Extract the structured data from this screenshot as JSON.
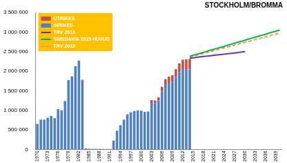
{
  "chart_data": {
    "type": "bar",
    "title": "STOCKHOLM/BROMMA",
    "categories": [
      1970,
      null,
      null,
      1973,
      null,
      null,
      1976,
      null,
      null,
      1979,
      null,
      null,
      1982,
      null,
      null,
      1985,
      null,
      null,
      1988,
      null,
      null,
      1991,
      null,
      null,
      1994,
      null,
      null,
      1997,
      null,
      null,
      2000,
      null,
      null,
      2003,
      null,
      null,
      2006,
      null,
      null,
      2009,
      null,
      null,
      2012,
      null,
      null,
      2015,
      null,
      null,
      2018,
      null,
      null,
      2021,
      null,
      null,
      2024,
      null,
      null,
      2027,
      null,
      null,
      2030,
      null,
      null,
      2033,
      null,
      null,
      2036,
      null,
      null,
      2039,
      null
    ],
    "series": [
      {
        "name": "UTRIKES",
        "type": "bar",
        "color": "#c0504d",
        "values": [
          0,
          0,
          0,
          0,
          0,
          0,
          0,
          0,
          0,
          0,
          0,
          0,
          0,
          0,
          0,
          0,
          0,
          0,
          0,
          0,
          0,
          0,
          0,
          0,
          0,
          0,
          0,
          0,
          0,
          0,
          0,
          0,
          0,
          70000,
          70000,
          80000,
          120000,
          150000,
          160000,
          170000,
          200000,
          220000,
          240000,
          250000,
          260000,
          null,
          null,
          null,
          null,
          null,
          null,
          null,
          null,
          null,
          null,
          null,
          null,
          null,
          null,
          null,
          null,
          null,
          null,
          null,
          null,
          null,
          null,
          null,
          null,
          null,
          null
        ]
      },
      {
        "name": "INRIKES",
        "type": "bar",
        "color": "#4f81bd",
        "values": [
          650000,
          760000,
          760000,
          810000,
          860000,
          800000,
          1030000,
          1000000,
          1240000,
          1770000,
          1870000,
          2130000,
          2270000,
          1780000,
          30000,
          20000,
          15000,
          15000,
          15000,
          10000,
          10000,
          10000,
          230000,
          480000,
          620000,
          760000,
          900000,
          950000,
          980000,
          1000000,
          990000,
          960000,
          970000,
          1190000,
          1180000,
          1250000,
          1480000,
          1650000,
          1700000,
          1730000,
          1850000,
          1980000,
          2050000,
          2050000,
          2050000,
          null,
          null,
          null,
          null,
          null,
          null,
          null,
          null,
          null,
          null,
          null,
          null,
          null,
          null,
          null,
          null,
          null,
          null,
          null,
          null,
          null,
          null,
          null,
          null,
          null,
          null
        ]
      },
      {
        "name": "TRV 2013",
        "type": "line",
        "color": "#7030a0",
        "line_style": "solid",
        "values": [
          null,
          null,
          null,
          null,
          null,
          null,
          null,
          null,
          null,
          null,
          null,
          null,
          null,
          null,
          null,
          null,
          null,
          null,
          null,
          null,
          null,
          null,
          null,
          null,
          null,
          null,
          null,
          null,
          null,
          null,
          null,
          null,
          null,
          null,
          null,
          null,
          null,
          null,
          null,
          null,
          null,
          null,
          null,
          null,
          2330000,
          2340000,
          2355000,
          2365000,
          2375000,
          2385000,
          2395000,
          2405000,
          2415000,
          2425000,
          2435000,
          2445000,
          2455000,
          2465000,
          2475000,
          2490000,
          2500000,
          null,
          null,
          null,
          null,
          null,
          null,
          null,
          null,
          null,
          null
        ]
      },
      {
        "name": "SWEDAVIA 2015 HUVUD",
        "type": "line",
        "color": "#00b050",
        "line_style": "solid",
        "values": [
          null,
          null,
          null,
          null,
          null,
          null,
          null,
          null,
          null,
          null,
          null,
          null,
          null,
          null,
          null,
          null,
          null,
          null,
          null,
          null,
          null,
          null,
          null,
          null,
          null,
          null,
          null,
          null,
          null,
          null,
          null,
          null,
          null,
          null,
          null,
          null,
          null,
          null,
          null,
          null,
          null,
          null,
          null,
          null,
          2380000,
          2405000,
          2430000,
          2455000,
          2480000,
          2510000,
          2535000,
          2560000,
          2585000,
          2610000,
          2635000,
          2665000,
          2690000,
          2715000,
          2740000,
          2765000,
          2790000,
          2820000,
          2845000,
          2870000,
          2895000,
          2920000,
          2945000,
          2975000,
          3000000,
          3025000,
          3050000
        ]
      },
      {
        "name": "TRV 2015",
        "type": "line",
        "color": "#f79646",
        "line_style": "dashed",
        "values": [
          null,
          null,
          null,
          null,
          null,
          null,
          null,
          null,
          null,
          null,
          null,
          null,
          null,
          null,
          null,
          null,
          null,
          null,
          null,
          null,
          null,
          null,
          null,
          null,
          null,
          null,
          null,
          null,
          null,
          null,
          null,
          null,
          null,
          null,
          null,
          null,
          null,
          null,
          null,
          null,
          null,
          null,
          null,
          null,
          2360000,
          2380000,
          2405000,
          2430000,
          2450000,
          2475000,
          2500000,
          2525000,
          2545000,
          2570000,
          2595000,
          2620000,
          2640000,
          2665000,
          2690000,
          2715000,
          2735000,
          2760000,
          2785000,
          2810000,
          2830000,
          2855000,
          2880000,
          2905000,
          2925000,
          2950000,
          2980000
        ]
      }
    ],
    "ylim": [
      0,
      3500000
    ],
    "yticks": [
      0,
      {
        "value": 500000,
        "label": "500 000"
      },
      {
        "value": 1000000,
        "label": "1 000 000"
      },
      {
        "value": 1500000,
        "label": "1 500 000"
      },
      {
        "value": 2000000,
        "label": "2 000 000"
      },
      {
        "value": 2500000,
        "label": "2 500 000"
      },
      {
        "value": 3000000,
        "label": "3 000 000"
      },
      {
        "value": 3500000,
        "label": "3 500 000"
      }
    ],
    "stacked": true,
    "grid": false,
    "legend": "top-left"
  }
}
